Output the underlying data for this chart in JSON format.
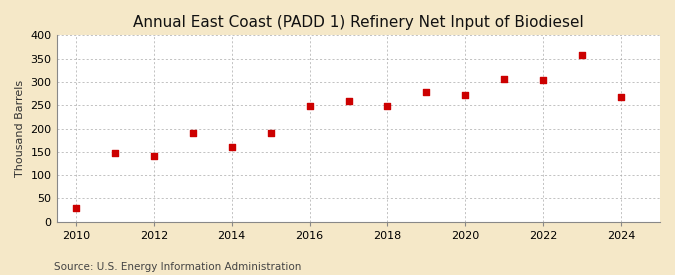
{
  "title": "Annual East Coast (PADD 1) Refinery Net Input of Biodiesel",
  "ylabel": "Thousand Barrels",
  "source": "Source: U.S. Energy Information Administration",
  "background_color": "#f5e8c8",
  "plot_background_color": "#ffffff",
  "years": [
    2010,
    2011,
    2012,
    2013,
    2014,
    2015,
    2016,
    2017,
    2018,
    2019,
    2020,
    2021,
    2022,
    2023,
    2024
  ],
  "values": [
    30,
    148,
    142,
    190,
    160,
    190,
    248,
    260,
    248,
    278,
    272,
    307,
    305,
    358,
    268
  ],
  "marker_color": "#cc0000",
  "marker_size": 5,
  "ylim": [
    0,
    400
  ],
  "yticks": [
    0,
    50,
    100,
    150,
    200,
    250,
    300,
    350,
    400
  ],
  "xlim": [
    2009.5,
    2025.0
  ],
  "xticks": [
    2010,
    2012,
    2014,
    2016,
    2018,
    2020,
    2022,
    2024
  ],
  "grid_color": "#aaaaaa",
  "title_fontsize": 11,
  "axis_fontsize": 8,
  "source_fontsize": 7.5
}
